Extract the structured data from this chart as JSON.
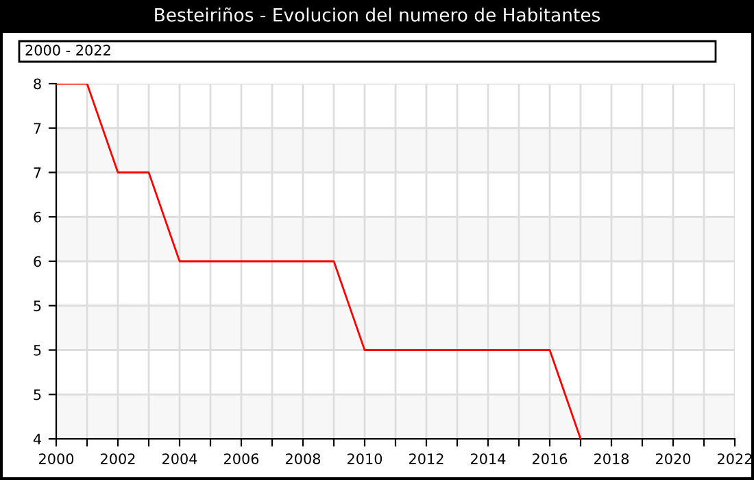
{
  "chart_data": {
    "type": "line",
    "title": "Besteiriños - Evolucion del numero de Habitantes",
    "subtitle": "2000 - 2022",
    "x": [
      2000,
      2001,
      2002,
      2003,
      2004,
      2005,
      2006,
      2007,
      2008,
      2009,
      2010,
      2011,
      2012,
      2013,
      2014,
      2015,
      2016,
      2017
    ],
    "series": [
      {
        "color": "#ff0000",
        "values": [
          8,
          8,
          7,
          7,
          6,
          6,
          6,
          6,
          6,
          6,
          5,
          5,
          5,
          5,
          5,
          5,
          5,
          4
        ]
      }
    ],
    "xlim": [
      2000,
      2022
    ],
    "xticks": [
      2000,
      {
        "value": 2001,
        "label": null
      },
      2002,
      {
        "value": 2003,
        "label": null
      },
      2004,
      {
        "value": 2005,
        "label": null
      },
      2006,
      {
        "value": 2007,
        "label": null
      },
      2008,
      {
        "value": 2009,
        "label": null
      },
      2010,
      {
        "value": 2011,
        "label": null
      },
      2012,
      {
        "value": 2013,
        "label": null
      },
      2014,
      {
        "value": 2015,
        "label": null
      },
      2016,
      {
        "value": 2017,
        "label": null
      },
      2018,
      {
        "value": 2019,
        "label": null
      },
      2020,
      {
        "value": 2021,
        "label": null
      },
      2022
    ],
    "ylim": [
      4,
      8
    ],
    "yticks": [
      {
        "value": 4,
        "label": "4"
      },
      {
        "value": 4.5,
        "label": "5"
      },
      {
        "value": 5,
        "label": "5"
      },
      {
        "value": 5.5,
        "label": "5"
      },
      {
        "value": 6,
        "label": "6"
      },
      {
        "value": 6.5,
        "label": "6"
      },
      {
        "value": 7,
        "label": "7"
      },
      {
        "value": 7.5,
        "label": "7"
      },
      {
        "value": 8,
        "label": "8"
      }
    ],
    "bands": [
      {
        "axis": "y",
        "from": 4,
        "to": 4.5,
        "color": "#f7f7f7"
      },
      {
        "axis": "y",
        "from": 5,
        "to": 5.5,
        "color": "#f7f7f7"
      },
      {
        "axis": "y",
        "from": 6,
        "to": 6.5,
        "color": "#f7f7f7"
      },
      {
        "axis": "y",
        "from": 7,
        "to": 7.5,
        "color": "#f7f7f7"
      }
    ],
    "grid": true,
    "legend": false,
    "marker": "none",
    "line_style": "solid"
  }
}
